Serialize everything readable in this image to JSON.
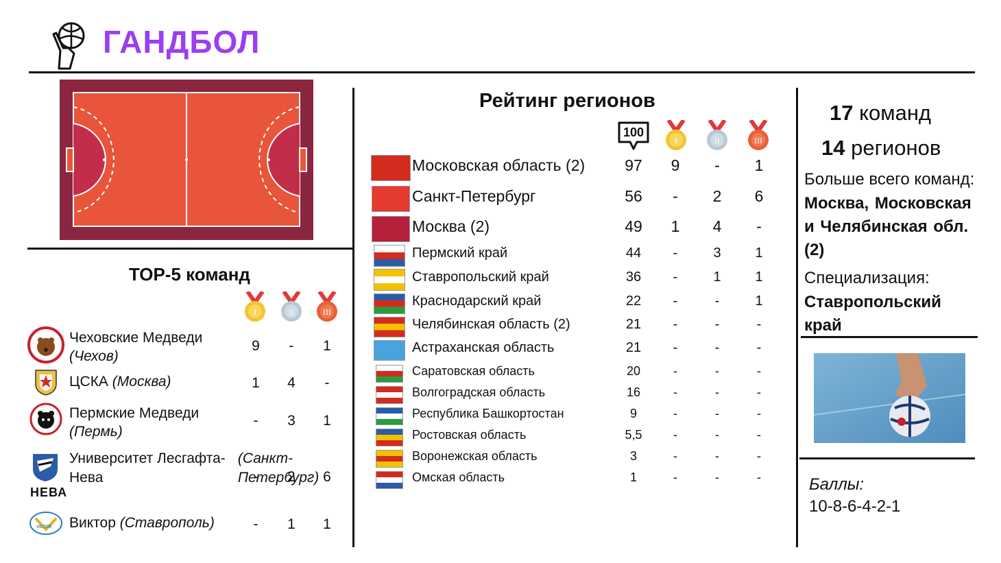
{
  "header": {
    "title": "ГАНДБОЛ",
    "logo_icon": "handball-hand-icon"
  },
  "colors": {
    "accent": "#9b3ff0",
    "court_outer": "#8b2540",
    "court_inner": "#e8553a",
    "court_zone": "#c22e4a"
  },
  "top5": {
    "title": "ТОР-5 команд",
    "medal_icons": [
      "gold-medal-icon",
      "silver-medal-icon",
      "bronze-medal-icon"
    ],
    "teams": [
      {
        "name": "Чеховские Медведи",
        "city": "(Чехов)",
        "gold": "9",
        "silver": "-",
        "bronze": "1"
      },
      {
        "name": "ЦСКА",
        "city": "(Москва)",
        "gold": "1",
        "silver": "4",
        "bronze": "-"
      },
      {
        "name": "Пермские Медведи",
        "city": "(Пермь)",
        "gold": "-",
        "silver": "3",
        "bronze": "1"
      },
      {
        "name": "Университет Лесгафта-Нева",
        "city": "(Санкт-Петербург)",
        "gold": "-",
        "silver": "2",
        "bronze": "6",
        "logo_text": "НЕВА"
      },
      {
        "name": "Виктор",
        "city": "(Ставрополь)",
        "gold": "-",
        "silver": "1",
        "bronze": "1",
        "logo_text": "VICTOR"
      }
    ]
  },
  "regions": {
    "title": "Рейтинг регионов",
    "score_badge": "100",
    "rows": [
      {
        "name": "Московская область (2)",
        "points": "97",
        "gold": "9",
        "silver": "-",
        "bronze": "1"
      },
      {
        "name": "Санкт-Петербург",
        "points": "56",
        "gold": "-",
        "silver": "2",
        "bronze": "6"
      },
      {
        "name": "Москва (2)",
        "points": "49",
        "gold": "1",
        "silver": "4",
        "bronze": "-"
      },
      {
        "name": "Пермский край",
        "points": "44",
        "gold": "-",
        "silver": "3",
        "bronze": "1"
      },
      {
        "name": "Ставропольский край",
        "points": "36",
        "gold": "-",
        "silver": "1",
        "bronze": "1"
      },
      {
        "name": "Краснодарский край",
        "points": "22",
        "gold": "-",
        "silver": "-",
        "bronze": "1"
      },
      {
        "name": "Челябинская область (2)",
        "points": "21",
        "gold": "-",
        "silver": "-",
        "bronze": "-"
      },
      {
        "name": "Астраханская область",
        "points": "21",
        "gold": "-",
        "silver": "-",
        "bronze": "-"
      },
      {
        "name": "Саратовская область",
        "points": "20",
        "gold": "-",
        "silver": "-",
        "bronze": "-"
      },
      {
        "name": "Волгоградская область",
        "points": "16",
        "gold": "-",
        "silver": "-",
        "bronze": "-"
      },
      {
        "name": "Республика Башкортостан",
        "points": "9",
        "gold": "-",
        "silver": "-",
        "bronze": "-"
      },
      {
        "name": "Ростовская область",
        "points": "5,5",
        "gold": "-",
        "silver": "-",
        "bronze": "-"
      },
      {
        "name": "Воронежская область",
        "points": "3",
        "gold": "-",
        "silver": "-",
        "bronze": "-"
      },
      {
        "name": "Омская область",
        "points": "1",
        "gold": "-",
        "silver": "-",
        "bronze": "-"
      }
    ]
  },
  "summary": {
    "teams_num": "17",
    "teams_word": "команд",
    "regions_num": "14",
    "regions_word": "регионов",
    "most_teams_label": "Больше всего команд:",
    "most_teams_value": "Москва, Московская и Челябинская обл. (2)",
    "specialization_label": "Специализация:",
    "specialization_value": "Ставропольский край",
    "points_label": "Баллы:",
    "points_value": "10-8-6-4-2-1"
  }
}
